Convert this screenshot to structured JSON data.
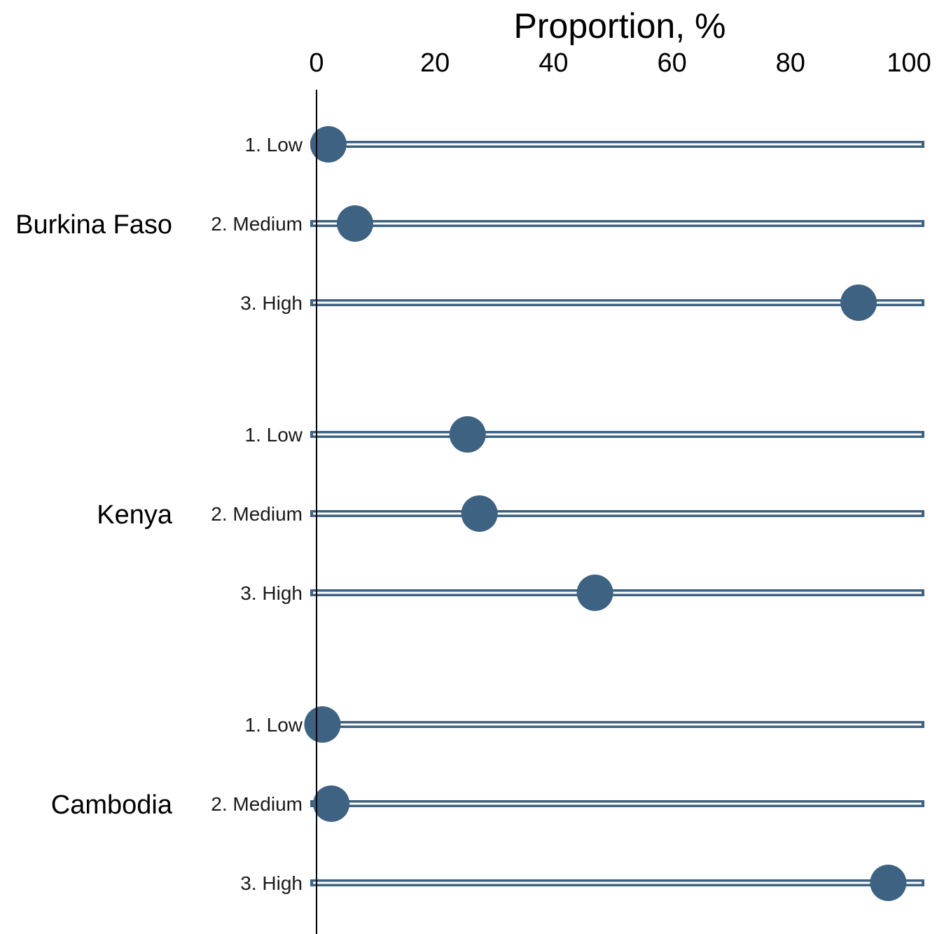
{
  "chart_data": {
    "type": "dot",
    "xlabel": "Proportion, %",
    "xlim": [
      0,
      100
    ],
    "xticks": [
      "0",
      "20",
      "40",
      "60",
      "80",
      "100"
    ],
    "color": "#3e6281",
    "grid": false,
    "groups": [
      {
        "name": "Burkina Faso",
        "items": [
          {
            "label": "1. Low",
            "value": 2
          },
          {
            "label": "2. Medium",
            "value": 6.5
          },
          {
            "label": "3. High",
            "value": 91.5
          }
        ]
      },
      {
        "name": "Kenya",
        "items": [
          {
            "label": "1. Low",
            "value": 25.5
          },
          {
            "label": "2. Medium",
            "value": 27.5
          },
          {
            "label": "3. High",
            "value": 47
          }
        ]
      },
      {
        "name": "Cambodia",
        "items": [
          {
            "label": "1. Low",
            "value": 1
          },
          {
            "label": "2. Medium",
            "value": 2.5
          },
          {
            "label": "3. High",
            "value": 96.5
          }
        ]
      }
    ]
  }
}
